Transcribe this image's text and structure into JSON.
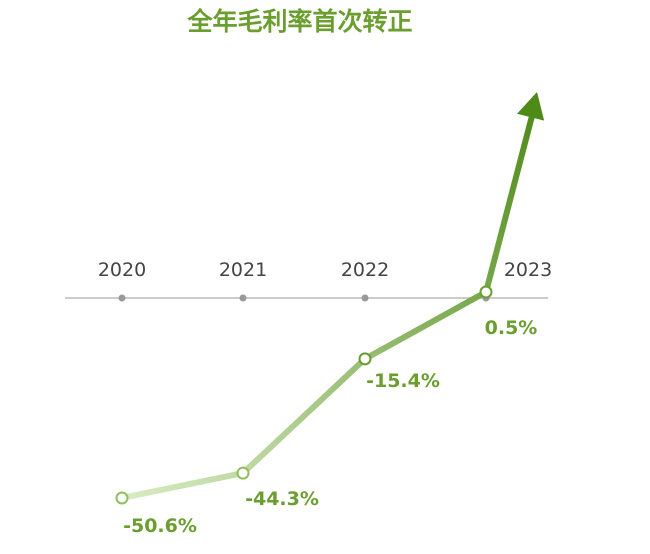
{
  "chart_data": {
    "type": "line",
    "title": "全年毛利率首次转正",
    "xlabel": "",
    "ylabel": "",
    "categories": [
      "2020",
      "2021",
      "2022",
      "2023"
    ],
    "series": [
      {
        "values": [
          -50.6,
          -44.3,
          -15.4,
          0.5
        ]
      }
    ],
    "data_labels": [
      "-50.6%",
      "-44.3%",
      "-15.4%",
      "0.5%"
    ],
    "ylim": [
      -55,
      16
    ],
    "grid": false,
    "legend": "none",
    "colors": {
      "title": "#6a9e2e",
      "label": "#6a9e2e",
      "line_start": "#d9ebc3",
      "line_end": "#4e8a18",
      "axis": "#bbbbbb",
      "tick": "#999999"
    }
  }
}
